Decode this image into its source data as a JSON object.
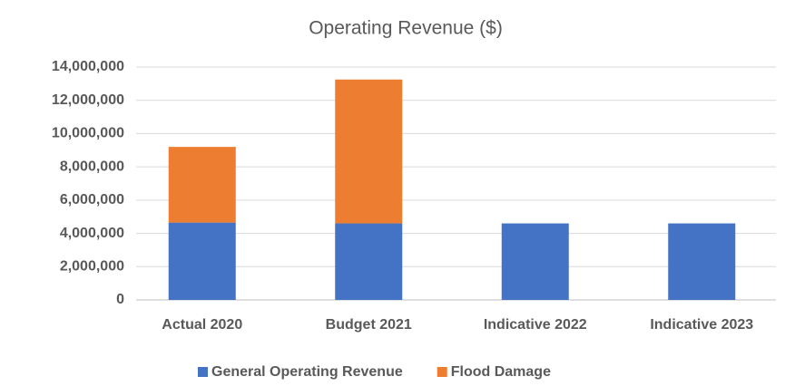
{
  "chart_data": {
    "type": "stacked_bar",
    "title": "Operating Revenue ($)",
    "categories": [
      "Actual 2020",
      "Budget  2021",
      "Indicative 2022",
      "Indicative 2023"
    ],
    "series": [
      {
        "name": "General Operating Revenue",
        "color": "#4472c4",
        "values": [
          4650000,
          4600000,
          4600000,
          4600000
        ]
      },
      {
        "name": "Flood Damage",
        "color": "#ed7d31",
        "values": [
          4550000,
          8650000,
          0,
          0
        ]
      }
    ],
    "ylim": [
      0,
      14000000
    ],
    "yticks": [
      0,
      {
        "value": 2000000,
        "label": "2,000,000"
      },
      {
        "value": 4000000,
        "label": "4,000,000"
      },
      {
        "value": 6000000,
        "label": "6,000,000"
      },
      {
        "value": 8000000,
        "label": "8,000,000"
      },
      {
        "value": 10000000,
        "label": "10,000,000"
      },
      {
        "value": 12000000,
        "label": "12,000,000"
      },
      {
        "value": 14000000,
        "label": "14,000,000"
      }
    ],
    "grid": true,
    "legend": "bottom"
  }
}
